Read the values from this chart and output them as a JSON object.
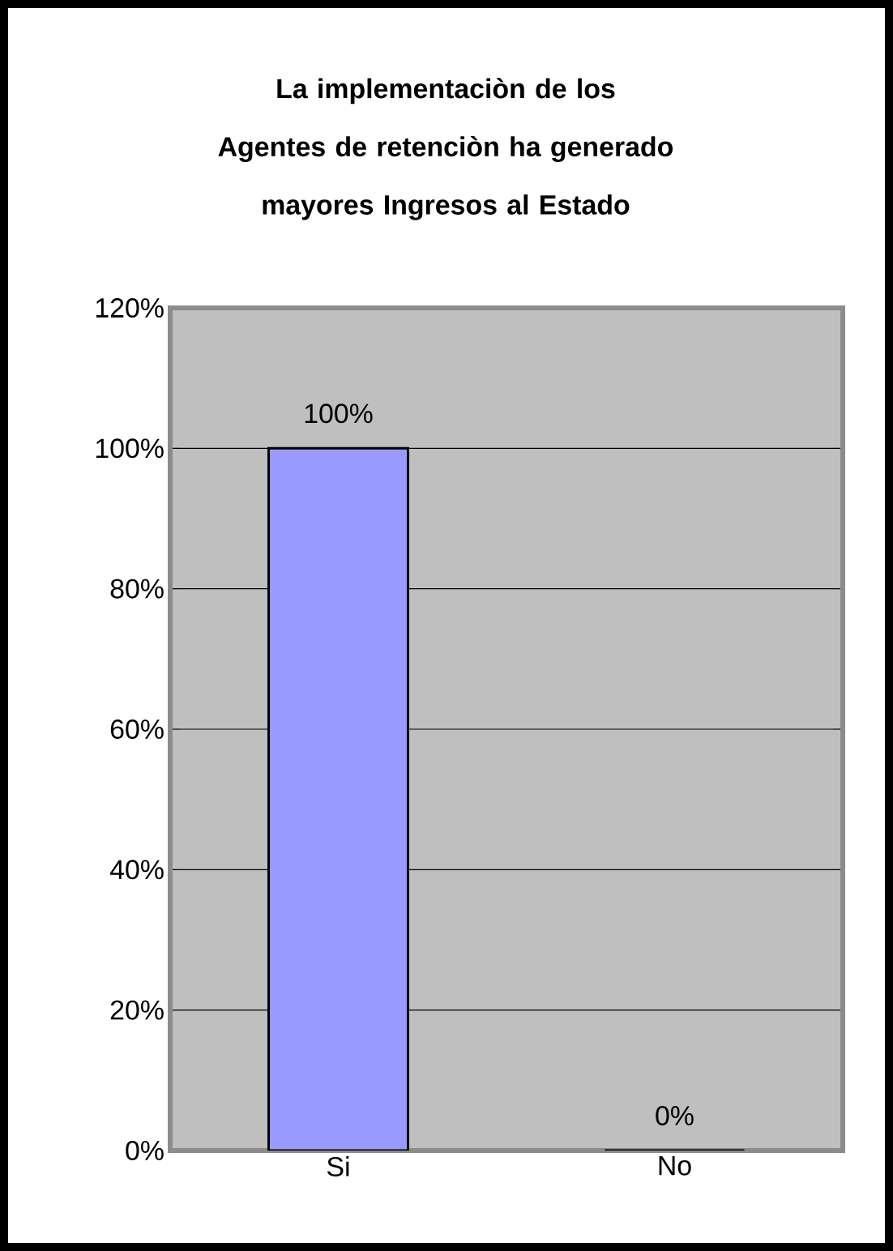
{
  "chart_data": {
    "type": "bar",
    "title": "La implementaciòn de los Agentes de retenciòn ha generado mayores Ingresos al Estado",
    "categories": [
      "Si",
      "No"
    ],
    "values": [
      100,
      0
    ],
    "color": "#9999ff",
    "value_labels": [
      "100%",
      "0%"
    ],
    "ylim": [
      0,
      120
    ],
    "yticks": [
      {
        "value": 0,
        "label": "0%"
      },
      {
        "value": 20,
        "label": "20%"
      },
      {
        "value": 40,
        "label": "40%"
      },
      {
        "value": 60,
        "label": "60%"
      },
      {
        "value": 80,
        "label": "80%"
      },
      {
        "value": 100,
        "label": "100%"
      },
      {
        "value": 120,
        "label": "120%"
      }
    ],
    "grid": "y"
  }
}
